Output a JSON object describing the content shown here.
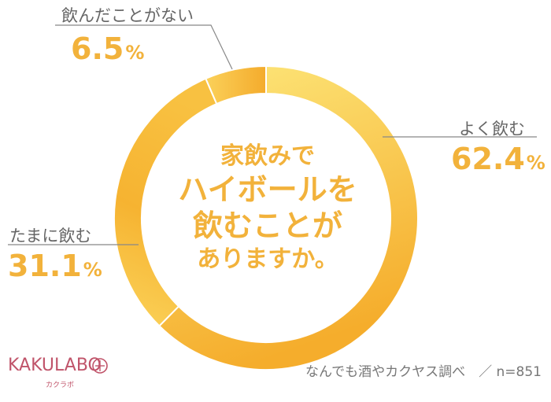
{
  "chart_data": {
    "type": "pie",
    "donut": true,
    "title": [
      "家飲みで",
      "ハイボールを",
      "飲むことが",
      "ありますか。"
    ],
    "series": [
      {
        "name": "よく飲む",
        "value": 62.4,
        "color_start": "#fde87c",
        "color_end": "#f7b731"
      },
      {
        "name": "たまに飲む",
        "value": 31.1,
        "color_start": "#f7b731",
        "color_end": "#fcd860"
      },
      {
        "name": "飲んだことがない",
        "value": 6.5,
        "color_start": "#f9c640",
        "color_end": "#f5b02e"
      }
    ],
    "unit": "%",
    "labels": [
      {
        "name": "よく飲む",
        "value": "62.4"
      },
      {
        "name": "たまに飲む",
        "value": "31.1"
      },
      {
        "name": "飲んだことがない",
        "value": "6.5"
      }
    ]
  },
  "logo": {
    "text": "KAKULABO",
    "sub": "カクラボ",
    "color": "#c0546a"
  },
  "source": "なんでも酒やカクヤス調べ　／ n=851"
}
